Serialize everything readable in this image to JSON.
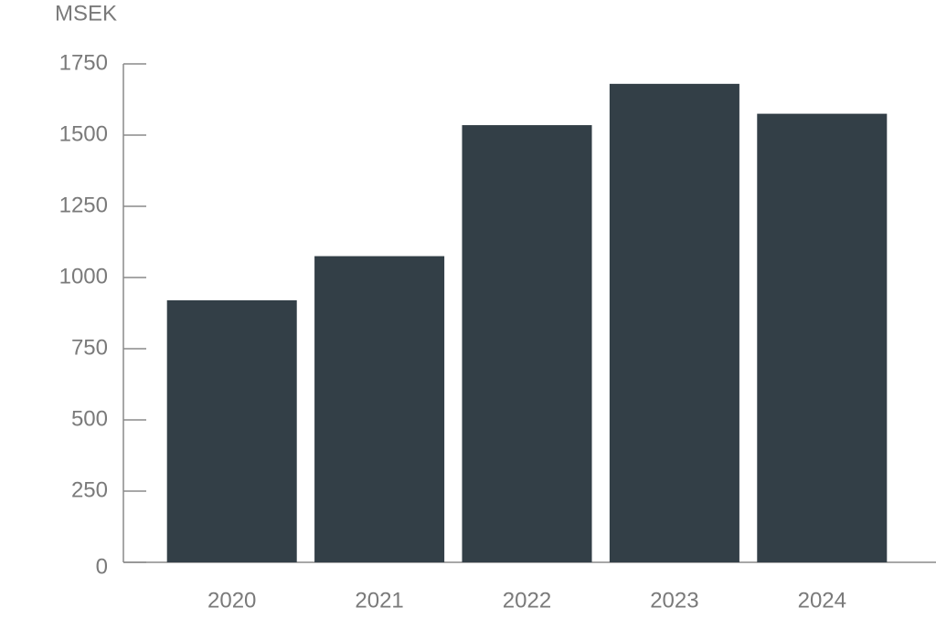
{
  "chart_data": {
    "type": "bar",
    "y_label": "MSEK",
    "categories": [
      "2020",
      "2021",
      "2022",
      "2023",
      "2024"
    ],
    "values": [
      920,
      1075,
      1535,
      1680,
      1575
    ],
    "color": "#333f47",
    "ylim": [
      0,
      1750
    ],
    "yticks": [
      0,
      250,
      500,
      750,
      1000,
      1250,
      1500,
      1750
    ],
    "grid": false
  }
}
